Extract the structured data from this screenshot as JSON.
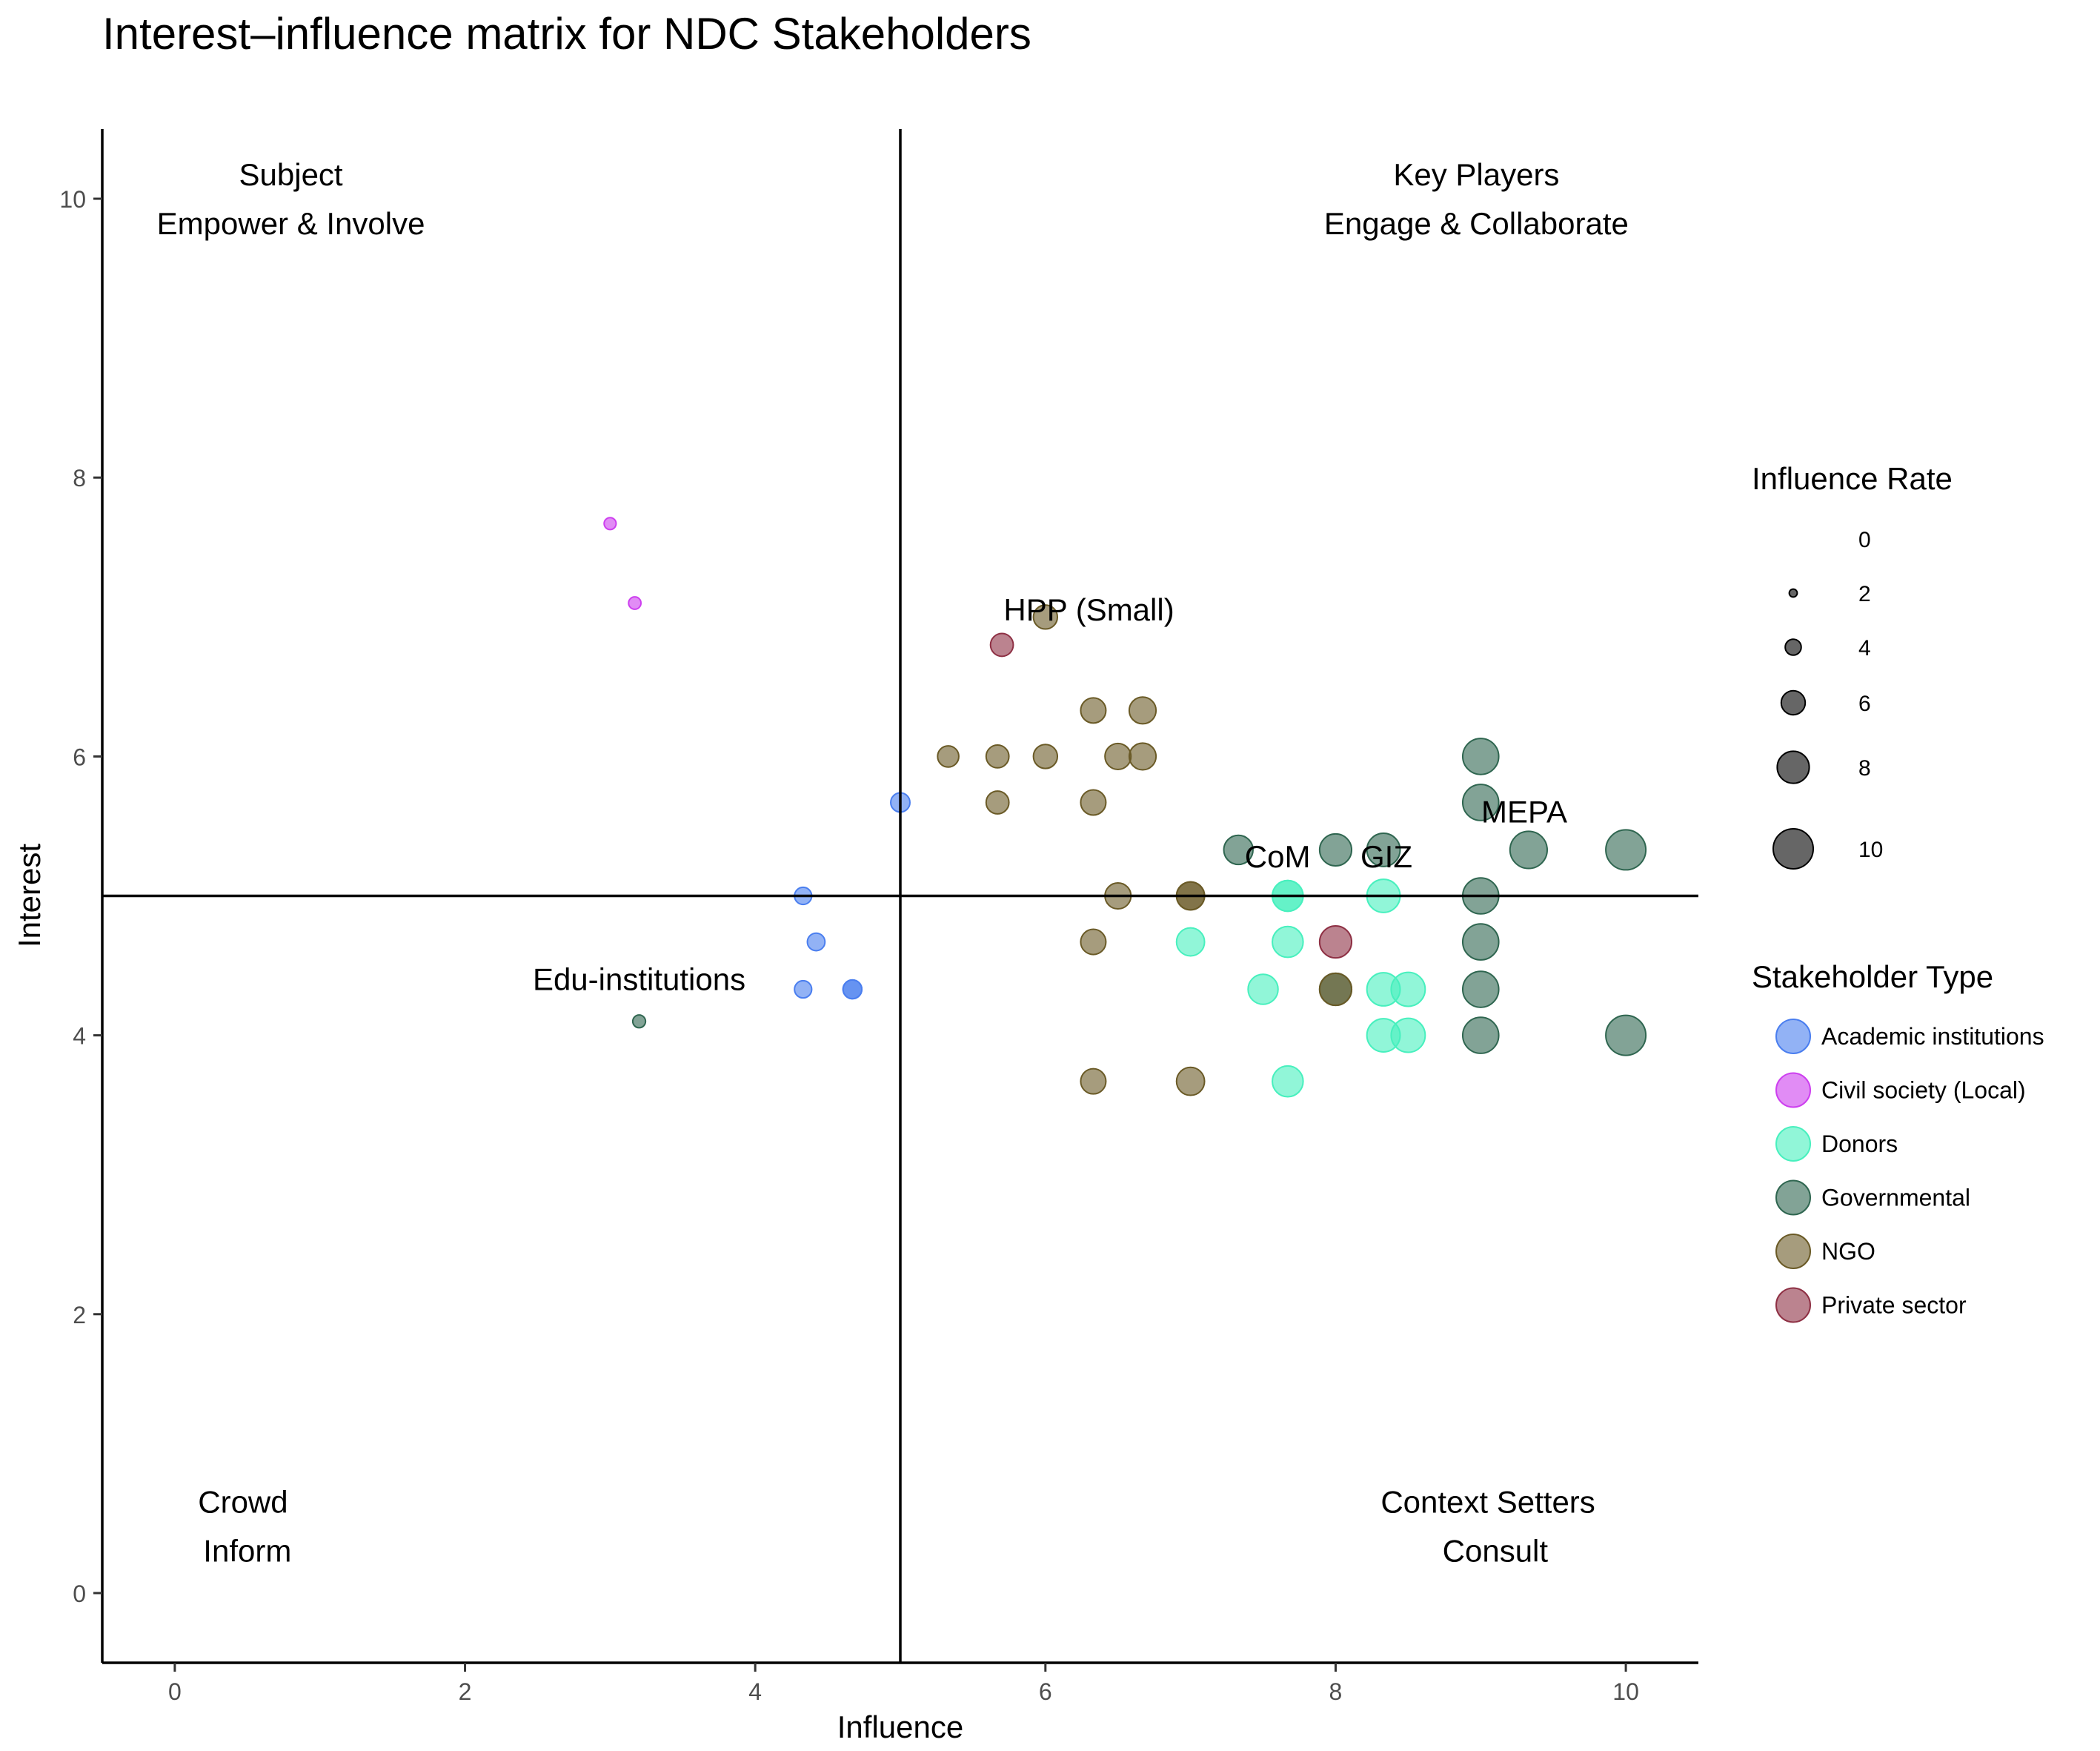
{
  "chart_data": {
    "type": "scatter",
    "title": "Interest–influence matrix for NDC Stakeholders",
    "xlabel": "Influence",
    "ylabel": "Interest",
    "xlim": [
      -0.5,
      10.5
    ],
    "ylim": [
      -0.5,
      10.5
    ],
    "x_ticks": [
      0,
      2,
      4,
      6,
      8,
      10
    ],
    "y_ticks": [
      0,
      2,
      4,
      6,
      8,
      10
    ],
    "grid": false,
    "reference_lines": {
      "x": 5,
      "y": 5
    },
    "quadrants": [
      {
        "id": "subject",
        "x": 0.8,
        "y": 10.17,
        "label": "Subject"
      },
      {
        "id": "subject-action",
        "x": 0.8,
        "y": 9.82,
        "label": "Empower & Involve"
      },
      {
        "id": "key-players",
        "x": 8.97,
        "y": 10.17,
        "label": "Key Players"
      },
      {
        "id": "key-players-action",
        "x": 8.97,
        "y": 9.82,
        "label": "Engage & Collaborate"
      },
      {
        "id": "crowd",
        "x": 0.47,
        "y": 0.65,
        "label": "Crowd"
      },
      {
        "id": "crowd-action",
        "x": 0.5,
        "y": 0.3,
        "label": "Inform"
      },
      {
        "id": "context-setters",
        "x": 9.05,
        "y": 0.65,
        "label": "Context Setters"
      },
      {
        "id": "context-setters-action",
        "x": 9.1,
        "y": 0.3,
        "label": "Consult"
      }
    ],
    "annotations": [
      {
        "x": 3.2,
        "y": 4.4,
        "text": "Edu-institutions"
      },
      {
        "x": 6.3,
        "y": 7.05,
        "text": "HPP (Small)"
      },
      {
        "x": 7.6,
        "y": 5.28,
        "text": "CoM"
      },
      {
        "x": 8.35,
        "y": 5.28,
        "text": "GIZ"
      },
      {
        "x": 9.3,
        "y": 5.6,
        "text": "MEPA"
      }
    ],
    "size_legend": {
      "title": "Influence Rate",
      "breaks": [
        0,
        2,
        4,
        6,
        8,
        10
      ]
    },
    "color_legend": {
      "title": "Stakeholder Type",
      "entries": [
        {
          "name": "Academic institutions",
          "color": "#4A7EEF"
        },
        {
          "name": "Civil society (Local)",
          "color": "#CD3FEF"
        },
        {
          "name": "Donors",
          "color": "#48F0BE"
        },
        {
          "name": "Governmental",
          "color": "#2F6650"
        },
        {
          "name": "NGO",
          "color": "#6A5A26"
        },
        {
          "name": "Private sector",
          "color": "#8E3044"
        }
      ]
    },
    "series": [
      {
        "name": "Academic institutions",
        "color": "#4A7EEF",
        "points": [
          [
            5.0,
            5.67,
            4.8
          ],
          [
            4.33,
            5.0,
            4.3
          ],
          [
            4.42,
            4.67,
            4.4
          ],
          [
            4.33,
            4.33,
            4.3
          ],
          [
            4.67,
            4.33,
            4.7
          ],
          [
            4.67,
            4.33,
            4.7
          ]
        ]
      },
      {
        "name": "Civil society (Local)",
        "color": "#CD3FEF",
        "points": [
          [
            3.0,
            7.67,
            3.0
          ],
          [
            3.17,
            7.1,
            3.1
          ]
        ]
      },
      {
        "name": "Donors",
        "color": "#48F0BE",
        "points": [
          [
            7.0,
            4.67,
            7.0
          ],
          [
            7.67,
            5.0,
            7.7
          ],
          [
            7.67,
            5.0,
            7.7
          ],
          [
            7.67,
            4.67,
            7.7
          ],
          [
            7.5,
            4.33,
            7.5
          ],
          [
            7.67,
            3.67,
            7.7
          ],
          [
            8.33,
            5.0,
            8.3
          ],
          [
            8.33,
            4.33,
            8.3
          ],
          [
            8.5,
            4.33,
            8.5
          ],
          [
            8.33,
            4.0,
            8.3
          ],
          [
            8.5,
            4.0,
            8.5
          ]
        ]
      },
      {
        "name": "Governmental",
        "color": "#2F6650",
        "points": [
          [
            3.2,
            4.1,
            3.2
          ],
          [
            7.33,
            5.33,
            7.3
          ],
          [
            8.0,
            5.33,
            8.0
          ],
          [
            8.33,
            5.33,
            8.3
          ],
          [
            9.0,
            6.0,
            9.0
          ],
          [
            9.0,
            5.67,
            9.0
          ],
          [
            9.33,
            5.33,
            9.3
          ],
          [
            10.0,
            5.33,
            10.0
          ],
          [
            9.0,
            5.0,
            9.0
          ],
          [
            9.0,
            4.67,
            9.0
          ],
          [
            9.0,
            4.33,
            9.0
          ],
          [
            9.0,
            4.0,
            9.0
          ],
          [
            10.0,
            4.0,
            10.0
          ],
          [
            8.0,
            4.33,
            8.0
          ]
        ]
      },
      {
        "name": "NGO",
        "color": "#6A5A26",
        "points": [
          [
            6.0,
            7.0,
            6.0
          ],
          [
            5.33,
            6.0,
            5.3
          ],
          [
            5.67,
            6.0,
            5.7
          ],
          [
            6.0,
            6.0,
            6.0
          ],
          [
            6.33,
            6.33,
            6.3
          ],
          [
            6.67,
            6.33,
            6.7
          ],
          [
            6.5,
            6.0,
            6.5
          ],
          [
            6.67,
            6.0,
            6.7
          ],
          [
            5.67,
            5.67,
            5.7
          ],
          [
            6.33,
            5.67,
            6.3
          ],
          [
            6.5,
            5.0,
            6.5
          ],
          [
            7.0,
            5.0,
            7.0
          ],
          [
            7.0,
            5.0,
            7.0
          ],
          [
            6.33,
            4.67,
            6.3
          ],
          [
            6.33,
            3.67,
            6.3
          ],
          [
            7.0,
            3.67,
            7.0
          ],
          [
            8.0,
            4.33,
            8.0
          ]
        ]
      },
      {
        "name": "Private sector",
        "color": "#8E3044",
        "points": [
          [
            5.7,
            6.8,
            5.7
          ],
          [
            8.0,
            4.67,
            8.0
          ]
        ]
      }
    ]
  }
}
